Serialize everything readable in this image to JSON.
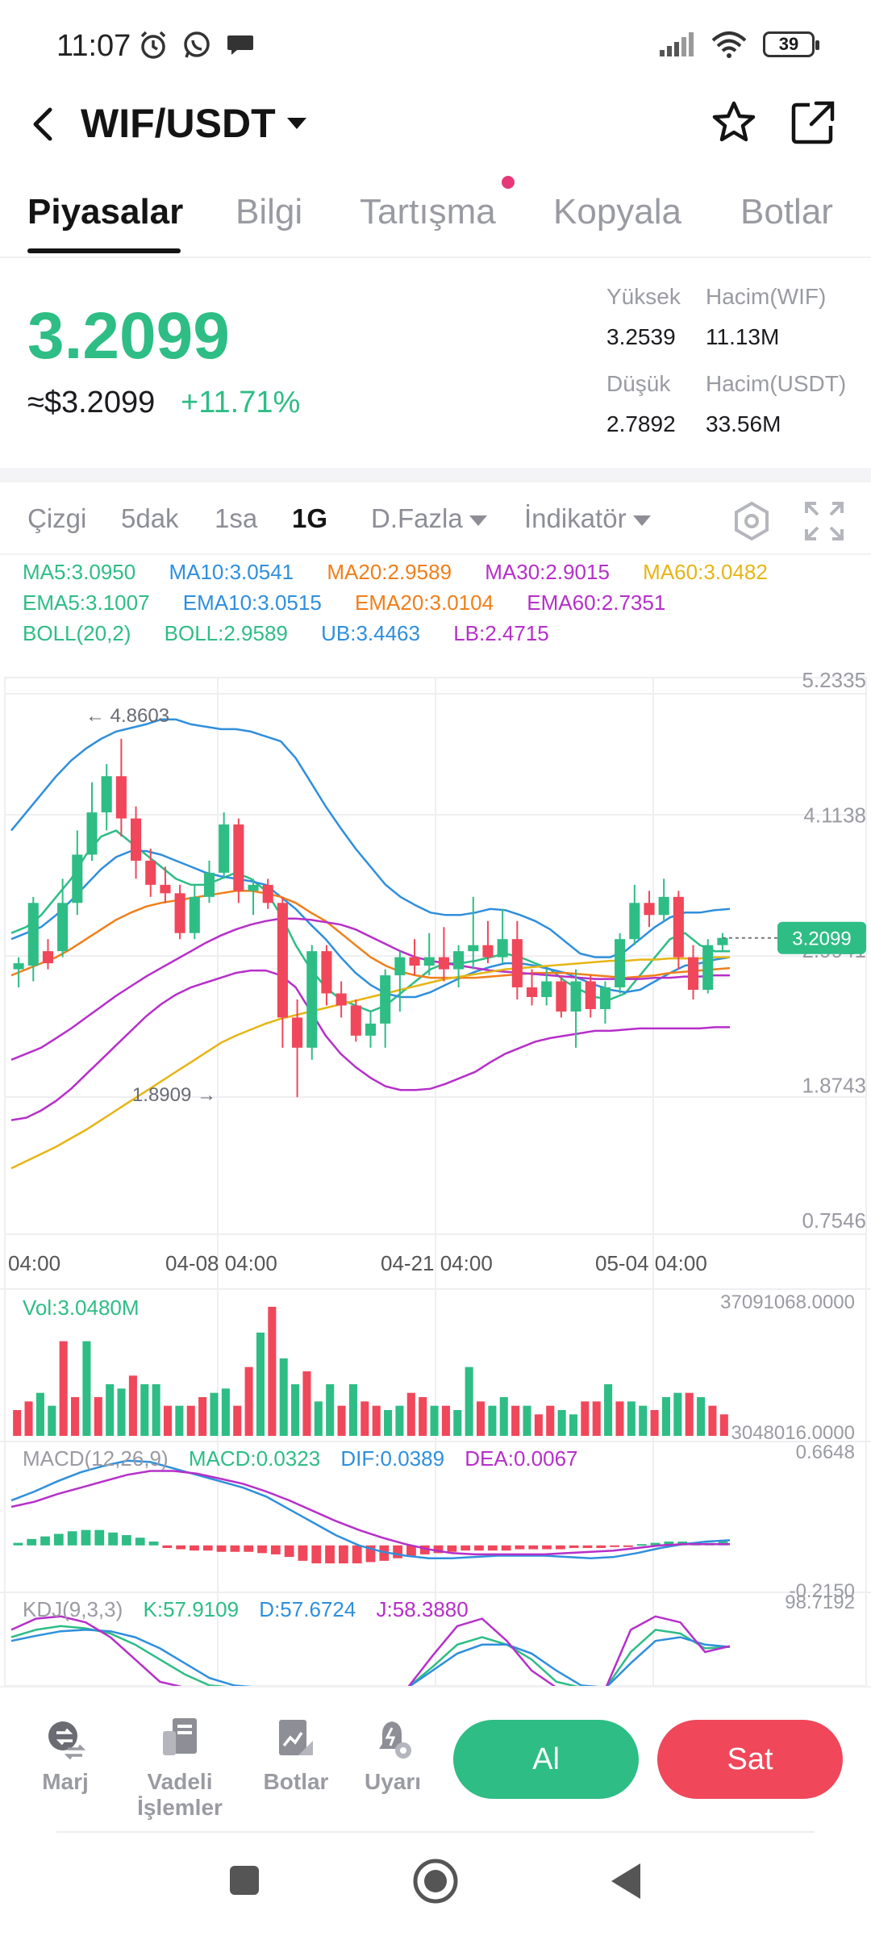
{
  "status": {
    "time": "11:07",
    "battery": "39"
  },
  "header": {
    "pair": "WIF/USDT"
  },
  "tabs": [
    {
      "label": "Piyasalar"
    },
    {
      "label": "Bilgi"
    },
    {
      "label": "Tartışma"
    },
    {
      "label": "Kopyala"
    },
    {
      "label": "Botlar"
    }
  ],
  "ticker": {
    "last_price": "3.2099",
    "usd_price": "≈$3.2099",
    "change_pct": "+11.71%",
    "high_label": "Yüksek",
    "high": "3.2539",
    "low_label": "Düşük",
    "low": "2.7892",
    "vol_base_label": "Hacim(WIF)",
    "vol_base": "11.13M",
    "vol_quote_label": "Hacim(USDT)",
    "vol_quote": "33.56M"
  },
  "toolbar": {
    "line": "Çizgi",
    "m5": "5dak",
    "h1": "1sa",
    "d1": "1G",
    "more": "D.Fazla",
    "indicator": "İndikatör"
  },
  "legend": {
    "ma5": "MA5:3.0950",
    "ma10": "MA10:3.0541",
    "ma20": "MA20:2.9589",
    "ma30": "MA30:2.9015",
    "ma60": "MA60:3.0482",
    "ema5": "EMA5:3.1007",
    "ema10": "EMA10:3.0515",
    "ema20": "EMA20:3.0104",
    "ema60": "EMA60:2.7351",
    "boll": "BOLL(20,2)",
    "boll_mid": "BOLL:2.9589",
    "ub": "UB:3.4463",
    "lb": "LB:2.4715"
  },
  "colors": {
    "up": "#2ebd85",
    "down": "#f0475a",
    "ma5": "#2ebd85",
    "ma10": "#2f8fdc",
    "ma20": "#f07f1a",
    "ma30": "#b62fc9",
    "ma60": "#e6b515"
  },
  "chart_data": [
    {
      "type": "candlestick",
      "title": "",
      "y_ticks": [
        "5.2335",
        "4.1138",
        "2.9941",
        "1.8743",
        "0.7546"
      ],
      "x_ticks": [
        "04:00",
        "04-08 04:00",
        "04-21 04:00",
        "05-04 04:00"
      ],
      "ylim": [
        0.7546,
        5.2335
      ],
      "high_marker": "← 4.8603",
      "low_marker": "1.8909 →",
      "current_price_tag": "3.2099",
      "candles": [
        {
          "o": 2.95,
          "h": 3.05,
          "l": 2.8,
          "c": 3.0
        },
        {
          "o": 2.98,
          "h": 3.55,
          "l": 2.85,
          "c": 3.5
        },
        {
          "o": 3.1,
          "h": 3.2,
          "l": 2.95,
          "c": 3.0
        },
        {
          "o": 3.1,
          "h": 3.7,
          "l": 3.05,
          "c": 3.5
        },
        {
          "o": 3.5,
          "h": 4.1,
          "l": 3.4,
          "c": 3.9
        },
        {
          "o": 3.9,
          "h": 4.5,
          "l": 3.85,
          "c": 4.25
        },
        {
          "o": 4.25,
          "h": 4.65,
          "l": 4.1,
          "c": 4.55
        },
        {
          "o": 4.55,
          "h": 4.86,
          "l": 4.05,
          "c": 4.2
        },
        {
          "o": 4.2,
          "h": 4.3,
          "l": 3.7,
          "c": 3.85
        },
        {
          "o": 3.85,
          "h": 3.95,
          "l": 3.55,
          "c": 3.65
        },
        {
          "o": 3.65,
          "h": 3.8,
          "l": 3.5,
          "c": 3.58
        },
        {
          "o": 3.58,
          "h": 3.65,
          "l": 3.2,
          "c": 3.25
        },
        {
          "o": 3.25,
          "h": 3.65,
          "l": 3.2,
          "c": 3.55
        },
        {
          "o": 3.55,
          "h": 3.85,
          "l": 3.5,
          "c": 3.75
        },
        {
          "o": 3.75,
          "h": 4.25,
          "l": 3.7,
          "c": 4.15
        },
        {
          "o": 4.15,
          "h": 4.2,
          "l": 3.5,
          "c": 3.6
        },
        {
          "o": 3.6,
          "h": 3.7,
          "l": 3.4,
          "c": 3.65
        },
        {
          "o": 3.65,
          "h": 3.7,
          "l": 3.45,
          "c": 3.5
        },
        {
          "o": 3.5,
          "h": 3.55,
          "l": 2.3,
          "c": 2.55
        },
        {
          "o": 2.55,
          "h": 2.7,
          "l": 1.89,
          "c": 2.3
        },
        {
          "o": 2.3,
          "h": 3.15,
          "l": 2.2,
          "c": 3.1
        },
        {
          "o": 3.1,
          "h": 3.15,
          "l": 2.65,
          "c": 2.75
        },
        {
          "o": 2.75,
          "h": 2.85,
          "l": 2.55,
          "c": 2.65
        },
        {
          "o": 2.65,
          "h": 2.7,
          "l": 2.35,
          "c": 2.4
        },
        {
          "o": 2.4,
          "h": 2.6,
          "l": 2.3,
          "c": 2.5
        },
        {
          "o": 2.5,
          "h": 2.95,
          "l": 2.3,
          "c": 2.9
        },
        {
          "o": 2.9,
          "h": 3.1,
          "l": 2.6,
          "c": 3.05
        },
        {
          "o": 3.05,
          "h": 3.2,
          "l": 2.9,
          "c": 2.98
        },
        {
          "o": 2.98,
          "h": 3.25,
          "l": 2.9,
          "c": 3.05
        },
        {
          "o": 3.05,
          "h": 3.3,
          "l": 2.85,
          "c": 2.95
        },
        {
          "o": 2.95,
          "h": 3.15,
          "l": 2.8,
          "c": 3.1
        },
        {
          "o": 3.1,
          "h": 3.55,
          "l": 2.95,
          "c": 3.15
        },
        {
          "o": 3.15,
          "h": 3.35,
          "l": 3.0,
          "c": 3.05
        },
        {
          "o": 3.05,
          "h": 3.45,
          "l": 3.0,
          "c": 3.2
        },
        {
          "o": 3.2,
          "h": 3.35,
          "l": 2.7,
          "c": 2.8
        },
        {
          "o": 2.8,
          "h": 2.95,
          "l": 2.65,
          "c": 2.72
        },
        {
          "o": 2.72,
          "h": 2.95,
          "l": 2.65,
          "c": 2.85
        },
        {
          "o": 2.85,
          "h": 2.9,
          "l": 2.55,
          "c": 2.6
        },
        {
          "o": 2.6,
          "h": 2.95,
          "l": 2.3,
          "c": 2.85
        },
        {
          "o": 2.85,
          "h": 2.9,
          "l": 2.55,
          "c": 2.62
        },
        {
          "o": 2.62,
          "h": 2.85,
          "l": 2.5,
          "c": 2.8
        },
        {
          "o": 2.8,
          "h": 3.25,
          "l": 2.75,
          "c": 3.2
        },
        {
          "o": 3.2,
          "h": 3.65,
          "l": 3.15,
          "c": 3.5
        },
        {
          "o": 3.5,
          "h": 3.6,
          "l": 3.3,
          "c": 3.4
        },
        {
          "o": 3.4,
          "h": 3.7,
          "l": 3.35,
          "c": 3.55
        },
        {
          "o": 3.55,
          "h": 3.6,
          "l": 2.95,
          "c": 3.05
        },
        {
          "o": 3.05,
          "h": 3.15,
          "l": 2.7,
          "c": 2.78
        },
        {
          "o": 2.78,
          "h": 3.2,
          "l": 2.75,
          "c": 3.15
        },
        {
          "o": 3.15,
          "h": 3.25,
          "l": 3.1,
          "c": 3.21
        }
      ],
      "series": [
        {
          "name": "MA5",
          "values": [
            3.25,
            3.3,
            3.4,
            3.55,
            3.7,
            3.9,
            4.05,
            4.1,
            4.0,
            3.9,
            3.8,
            3.7,
            3.65,
            3.65,
            3.7,
            3.75,
            3.7,
            3.6,
            3.4,
            3.15,
            2.95,
            2.8,
            2.7,
            2.65,
            2.6,
            2.65,
            2.75,
            2.85,
            2.95,
            3.0,
            3.0,
            3.02,
            3.05,
            3.08,
            3.05,
            3.0,
            2.95,
            2.85,
            2.78,
            2.72,
            2.7,
            2.75,
            2.9,
            3.05,
            3.2,
            3.25,
            3.15,
            3.1,
            3.1
          ]
        },
        {
          "name": "MA10",
          "values": [
            3.2,
            3.25,
            3.3,
            3.4,
            3.52,
            3.65,
            3.78,
            3.88,
            3.93,
            3.93,
            3.9,
            3.85,
            3.8,
            3.75,
            3.72,
            3.7,
            3.68,
            3.65,
            3.55,
            3.45,
            3.32,
            3.2,
            3.05,
            2.92,
            2.82,
            2.75,
            2.72,
            2.72,
            2.76,
            2.82,
            2.88,
            2.93,
            2.97,
            3.0,
            3.0,
            2.98,
            2.95,
            2.92,
            2.87,
            2.82,
            2.78,
            2.76,
            2.78,
            2.85,
            2.92,
            2.98,
            3.0,
            3.03,
            3.05
          ]
        },
        {
          "name": "MA20",
          "values": [
            2.9,
            2.95,
            3.0,
            3.05,
            3.12,
            3.2,
            3.28,
            3.36,
            3.42,
            3.47,
            3.5,
            3.52,
            3.54,
            3.56,
            3.58,
            3.6,
            3.6,
            3.58,
            3.55,
            3.5,
            3.42,
            3.35,
            3.25,
            3.15,
            3.05,
            2.98,
            2.93,
            2.9,
            2.88,
            2.88,
            2.88,
            2.88,
            2.89,
            2.9,
            2.91,
            2.92,
            2.92,
            2.92,
            2.91,
            2.9,
            2.89,
            2.88,
            2.89,
            2.9,
            2.92,
            2.93,
            2.94,
            2.95,
            2.96
          ]
        },
        {
          "name": "MA30",
          "values": [
            2.2,
            2.25,
            2.3,
            2.38,
            2.46,
            2.55,
            2.64,
            2.73,
            2.81,
            2.89,
            2.96,
            3.03,
            3.1,
            3.17,
            3.23,
            3.28,
            3.32,
            3.35,
            3.37,
            3.37,
            3.36,
            3.34,
            3.32,
            3.28,
            3.22,
            3.16,
            3.1,
            3.05,
            3.02,
            3.0,
            2.98,
            2.96,
            2.94,
            2.93,
            2.92,
            2.91,
            2.9,
            2.89,
            2.88,
            2.87,
            2.87,
            2.87,
            2.87,
            2.88,
            2.88,
            2.89,
            2.89,
            2.9,
            2.9
          ]
        },
        {
          "name": "MA60",
          "values": [
            1.3,
            1.36,
            1.42,
            1.48,
            1.55,
            1.62,
            1.7,
            1.78,
            1.86,
            1.94,
            2.02,
            2.1,
            2.18,
            2.26,
            2.34,
            2.4,
            2.45,
            2.5,
            2.54,
            2.57,
            2.6,
            2.63,
            2.66,
            2.69,
            2.72,
            2.75,
            2.78,
            2.81,
            2.84,
            2.87,
            2.89,
            2.91,
            2.93,
            2.95,
            2.96,
            2.97,
            2.98,
            2.99,
            3.0,
            3.01,
            3.02,
            3.02,
            3.03,
            3.03,
            3.04,
            3.04,
            3.04,
            3.05,
            3.05
          ]
        },
        {
          "name": "UB",
          "values": [
            4.1,
            4.25,
            4.4,
            4.55,
            4.68,
            4.78,
            4.86,
            4.92,
            4.95,
            4.98,
            5.02,
            5.02,
            4.98,
            4.96,
            4.94,
            4.94,
            4.92,
            4.88,
            4.84,
            4.7,
            4.5,
            4.3,
            4.12,
            3.95,
            3.8,
            3.65,
            3.55,
            3.48,
            3.42,
            3.4,
            3.4,
            3.42,
            3.45,
            3.44,
            3.4,
            3.35,
            3.28,
            3.18,
            3.08,
            3.05,
            3.05,
            3.1,
            3.2,
            3.3,
            3.38,
            3.42,
            3.42,
            3.44,
            3.45
          ]
        },
        {
          "name": "LB",
          "values": [
            1.7,
            1.72,
            1.78,
            1.86,
            1.96,
            2.08,
            2.2,
            2.32,
            2.44,
            2.56,
            2.66,
            2.74,
            2.8,
            2.84,
            2.88,
            2.92,
            2.94,
            2.94,
            2.9,
            2.8,
            2.6,
            2.4,
            2.25,
            2.14,
            2.05,
            1.98,
            1.95,
            1.95,
            1.96,
            2.0,
            2.05,
            2.1,
            2.18,
            2.25,
            2.3,
            2.35,
            2.38,
            2.4,
            2.42,
            2.44,
            2.44,
            2.45,
            2.46,
            2.46,
            2.46,
            2.46,
            2.46,
            2.47,
            2.47
          ]
        }
      ]
    },
    {
      "type": "bar",
      "title": "Vol:3.0480M",
      "ylim_labels": [
        "37091068.0000",
        "3048016.0000"
      ],
      "values": [
        6,
        8,
        10,
        7,
        22,
        9,
        22,
        9,
        12,
        11,
        14,
        12,
        12,
        7,
        7,
        7,
        9,
        10,
        11,
        7,
        16,
        24,
        30,
        18,
        12,
        15,
        8,
        12,
        7,
        12,
        8,
        7,
        6,
        7,
        10,
        9,
        7,
        7,
        6,
        16,
        8,
        7,
        9,
        7,
        7,
        5,
        7,
        6,
        5,
        8,
        8,
        12,
        8,
        8,
        7,
        6,
        9,
        10,
        10,
        9,
        7,
        5
      ]
    },
    {
      "type": "bar",
      "title": "MACD(12,26,9)",
      "legend": [
        "MACD:0.0323",
        "DIF:0.0389",
        "DEA:0.0067"
      ],
      "ylim_labels": [
        "0.6648",
        "-0.2150"
      ],
      "values": [
        0.02,
        0.05,
        0.07,
        0.09,
        0.11,
        0.12,
        0.12,
        0.1,
        0.08,
        0.06,
        0.03,
        -0.02,
        -0.03,
        -0.04,
        -0.04,
        -0.05,
        -0.05,
        -0.05,
        -0.06,
        -0.07,
        -0.09,
        -0.12,
        -0.14,
        -0.14,
        -0.14,
        -0.14,
        -0.13,
        -0.12,
        -0.1,
        -0.08,
        -0.07,
        -0.06,
        -0.05,
        -0.04,
        -0.04,
        -0.04,
        -0.04,
        -0.03,
        -0.03,
        -0.03,
        -0.03,
        -0.02,
        -0.02,
        -0.02,
        -0.01,
        -0.01,
        0.01,
        0.02,
        0.03,
        0.03,
        0.02,
        0.02,
        0.03
      ],
      "series": [
        {
          "name": "DIF",
          "values": [
            0.35,
            0.42,
            0.5,
            0.57,
            0.62,
            0.66,
            0.65,
            0.6,
            0.55,
            0.5,
            0.45,
            0.38,
            0.28,
            0.18,
            0.08,
            0.0,
            -0.05,
            -0.08,
            -0.1,
            -0.1,
            -0.09,
            -0.08,
            -0.08,
            -0.08,
            -0.09,
            -0.1,
            -0.09,
            -0.06,
            -0.02,
            0.01,
            0.03,
            0.04
          ]
        },
        {
          "name": "DEA",
          "values": [
            0.3,
            0.34,
            0.4,
            0.45,
            0.5,
            0.55,
            0.58,
            0.58,
            0.56,
            0.52,
            0.48,
            0.42,
            0.35,
            0.27,
            0.19,
            0.12,
            0.06,
            0.01,
            -0.03,
            -0.06,
            -0.07,
            -0.07,
            -0.07,
            -0.07,
            -0.06,
            -0.05,
            -0.04,
            -0.02,
            0.0,
            0.01,
            0.01,
            0.01
          ]
        }
      ]
    },
    {
      "type": "line",
      "title": "KDJ(9,3,3)",
      "legend": [
        "K:57.9109",
        "D:57.6724",
        "J:58.3880"
      ],
      "ylim_label_top": "98.7192",
      "series": [
        {
          "name": "K",
          "values": [
            70,
            80,
            85,
            82,
            75,
            60,
            40,
            20,
            5,
            0,
            0,
            0,
            0,
            0,
            0,
            0,
            0,
            30,
            60,
            70,
            60,
            40,
            10,
            0,
            0,
            50,
            80,
            75,
            55,
            57
          ]
        },
        {
          "name": "D",
          "values": [
            65,
            72,
            78,
            80,
            78,
            70,
            55,
            35,
            15,
            5,
            0,
            0,
            0,
            0,
            0,
            0,
            0,
            25,
            48,
            60,
            60,
            48,
            25,
            5,
            0,
            35,
            65,
            70,
            60,
            57
          ]
        },
        {
          "name": "J",
          "values": [
            80,
            95,
            98,
            90,
            70,
            40,
            10,
            0,
            0,
            0,
            0,
            0,
            0,
            0,
            0,
            0,
            0,
            45,
            85,
            95,
            65,
            25,
            0,
            0,
            0,
            80,
            98,
            90,
            50,
            58
          ]
        }
      ]
    }
  ],
  "bottom_nav": {
    "margin": "Marj",
    "futures_1": "Vadeli",
    "futures_2": "İşlemler",
    "bots": "Botlar",
    "alert": "Uyarı",
    "buy": "Al",
    "sell": "Sat"
  }
}
